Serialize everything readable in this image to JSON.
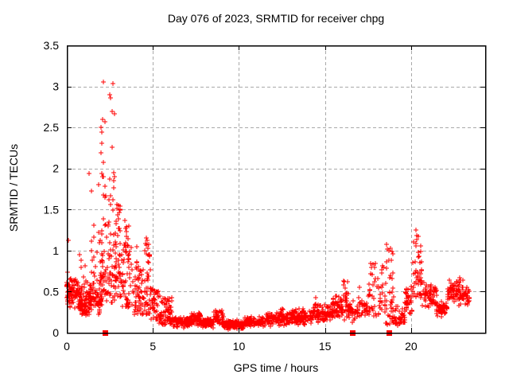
{
  "figure": {
    "background": "#ffffff"
  },
  "colors": {
    "marker": "#ff0000",
    "grid": "#a9a9a9",
    "axis": "#000000",
    "text": "#000000"
  },
  "chart_data": {
    "type": "scatter",
    "title": "Day 076 of 2023, SRMTID for receiver chpg",
    "xlabel": "GPS time / hours",
    "ylabel": "SRMTID / TECUs",
    "xlim": [
      0,
      24.3
    ],
    "ylim": [
      0,
      3.5
    ],
    "xticks": {
      "values": [
        0,
        5,
        10,
        15,
        20
      ],
      "labels": [
        "0",
        "5",
        "10",
        "15",
        "20"
      ]
    },
    "yticks": {
      "values": [
        0,
        0.5,
        1,
        1.5,
        2,
        2.5,
        3,
        3.5
      ],
      "labels": [
        "0",
        "0.5",
        "1",
        "1.5",
        "2",
        "2.5",
        "3",
        "3.5"
      ]
    },
    "grid": true,
    "legend": null,
    "marker": {
      "shape": "plus",
      "size": 7,
      "color": "#ff0000"
    },
    "flag_marker": {
      "shape": "filled-square",
      "size": 7,
      "color": "#ff0000",
      "y": 0
    },
    "flag_points_x": [
      2.2,
      16.6,
      18.7
    ],
    "seed": 76,
    "representation": "dense 30-second scatter approximated by density segments [x0,x1,ylow,yhigh,count,mode] plus explicit highlight points",
    "segments": [
      [
        0.0,
        0.75,
        0.28,
        0.68,
        90,
        0
      ],
      [
        0.0,
        0.3,
        0.5,
        0.75,
        8,
        0
      ],
      [
        0.75,
        1.3,
        0.18,
        0.55,
        70,
        0
      ],
      [
        0.75,
        1.2,
        0.55,
        0.95,
        10,
        2
      ],
      [
        1.3,
        2.05,
        0.2,
        0.6,
        70,
        0
      ],
      [
        1.4,
        1.7,
        0.6,
        1.4,
        12,
        1.8
      ],
      [
        1.75,
        2.05,
        0.6,
        1.3,
        12,
        1.8
      ],
      [
        2.0,
        3.2,
        0.3,
        0.95,
        80,
        0
      ],
      [
        2.0,
        3.2,
        0.9,
        1.5,
        26,
        1.5
      ],
      [
        2.0,
        2.3,
        1.0,
        2.1,
        10,
        1.3
      ],
      [
        2.3,
        2.8,
        1.0,
        2.0,
        12,
        1.3
      ],
      [
        2.8,
        3.2,
        0.85,
        1.6,
        10,
        1.3
      ],
      [
        3.2,
        3.8,
        0.3,
        1.1,
        50,
        1.4
      ],
      [
        3.3,
        3.7,
        1.0,
        1.35,
        8,
        1
      ],
      [
        3.8,
        4.5,
        0.22,
        0.8,
        55,
        1.3
      ],
      [
        4.0,
        4.3,
        0.7,
        1.02,
        6,
        1
      ],
      [
        4.5,
        4.85,
        0.22,
        1.12,
        42,
        1.6
      ],
      [
        4.85,
        5.35,
        0.15,
        0.55,
        45,
        1.2
      ],
      [
        5.35,
        6.2,
        0.1,
        0.45,
        75,
        1.2
      ],
      [
        6.2,
        7.25,
        0.05,
        0.2,
        90,
        0
      ],
      [
        7.25,
        7.8,
        0.06,
        0.27,
        55,
        0
      ],
      [
        7.8,
        8.55,
        0.05,
        0.18,
        65,
        0
      ],
      [
        8.55,
        9.1,
        0.07,
        0.3,
        50,
        0
      ],
      [
        9.1,
        10.3,
        0.04,
        0.16,
        90,
        0
      ],
      [
        10.3,
        11.6,
        0.06,
        0.2,
        95,
        0
      ],
      [
        11.6,
        12.9,
        0.07,
        0.26,
        95,
        0
      ],
      [
        12.35,
        12.6,
        0.2,
        0.36,
        8,
        1
      ],
      [
        12.9,
        14.3,
        0.08,
        0.3,
        100,
        0
      ],
      [
        14.3,
        15.4,
        0.1,
        0.38,
        80,
        0
      ],
      [
        14.35,
        14.7,
        0.3,
        0.46,
        8,
        1
      ],
      [
        15.4,
        16.35,
        0.14,
        0.5,
        75,
        0
      ],
      [
        15.95,
        16.35,
        0.4,
        0.63,
        9,
        1
      ],
      [
        16.35,
        16.8,
        0.1,
        0.42,
        30,
        0
      ],
      [
        16.8,
        17.45,
        0.15,
        0.48,
        35,
        0
      ],
      [
        17.5,
        17.95,
        0.2,
        0.85,
        30,
        1.6
      ],
      [
        18.0,
        18.4,
        0.15,
        0.82,
        22,
        1.6
      ],
      [
        18.45,
        19.0,
        0.1,
        1.05,
        45,
        1.7
      ],
      [
        19.0,
        19.65,
        0.05,
        0.35,
        45,
        0
      ],
      [
        19.65,
        20.1,
        0.2,
        0.62,
        40,
        0
      ],
      [
        20.1,
        20.65,
        0.4,
        1.2,
        48,
        1.5
      ],
      [
        20.65,
        21.5,
        0.25,
        0.65,
        65,
        0
      ],
      [
        21.5,
        22.1,
        0.18,
        0.42,
        55,
        0
      ],
      [
        22.1,
        23.0,
        0.3,
        0.68,
        75,
        0
      ],
      [
        23.0,
        23.4,
        0.32,
        0.58,
        30,
        0
      ]
    ],
    "highlight_points": [
      [
        2.12,
        3.05
      ],
      [
        2.68,
        3.03
      ],
      [
        2.5,
        2.9
      ],
      [
        2.52,
        2.86
      ],
      [
        2.65,
        2.7
      ],
      [
        2.78,
        2.67
      ],
      [
        2.1,
        2.6
      ],
      [
        2.2,
        2.57
      ],
      [
        2.0,
        2.5
      ],
      [
        2.05,
        2.44
      ],
      [
        2.05,
        2.31
      ],
      [
        2.65,
        2.26
      ],
      [
        2.0,
        2.19
      ],
      [
        1.3,
        1.94
      ],
      [
        2.05,
        1.94
      ],
      [
        2.5,
        1.87
      ],
      [
        1.85,
        1.8
      ],
      [
        2.2,
        1.78
      ],
      [
        1.42,
        1.73
      ],
      [
        2.45,
        1.62
      ],
      [
        3.0,
        1.55
      ],
      [
        3.1,
        1.5
      ],
      [
        3.35,
        1.37
      ],
      [
        3.6,
        1.3
      ],
      [
        4.6,
        1.15
      ],
      [
        4.68,
        1.12
      ],
      [
        4.05,
        1.05
      ],
      [
        0.08,
        1.12
      ],
      [
        1.85,
        1.22
      ],
      [
        1.9,
        1.1
      ],
      [
        1.75,
        0.98
      ],
      [
        0.85,
        0.88
      ],
      [
        18.55,
        1.08
      ],
      [
        18.6,
        1.02
      ],
      [
        20.3,
        1.25
      ],
      [
        20.35,
        1.18
      ],
      [
        16.3,
        0.62
      ],
      [
        17.0,
        0.55
      ]
    ]
  }
}
